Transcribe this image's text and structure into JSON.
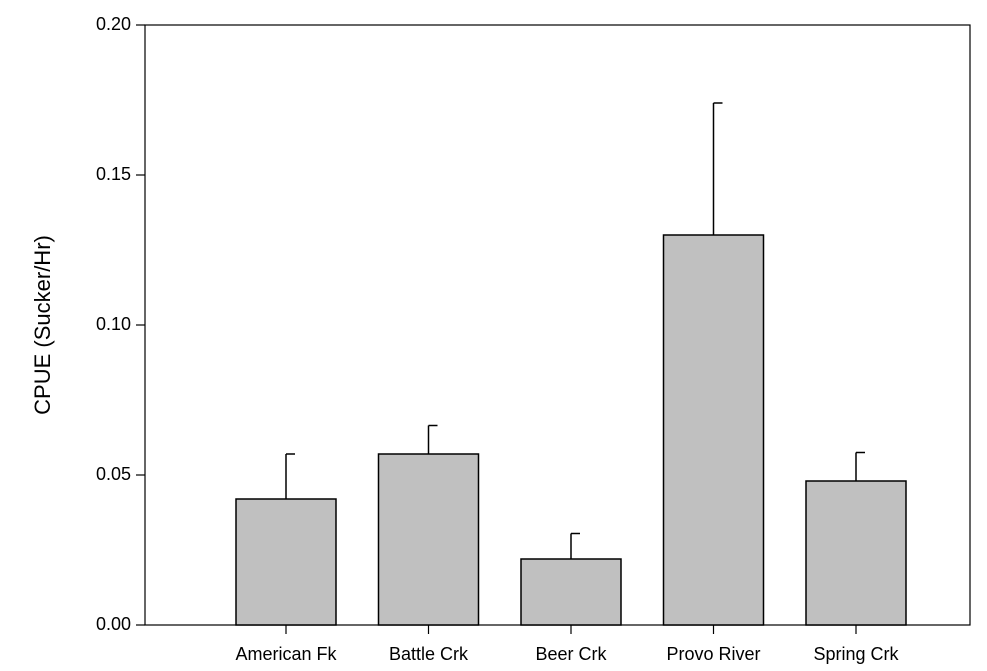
{
  "chart_data": {
    "type": "bar",
    "title": "",
    "xlabel": "",
    "ylabel": "CPUE (Sucker/Hr)",
    "categories": [
      "American Fk",
      "Battle Crk",
      "Beer Crk",
      "Provo River",
      "Spring Crk"
    ],
    "values": [
      0.042,
      0.057,
      0.022,
      0.13,
      0.048
    ],
    "error_upper": [
      0.057,
      0.0665,
      0.0305,
      0.174,
      0.0575
    ],
    "ylim": [
      0,
      0.2
    ],
    "yticks": [
      "0.00",
      "0.05",
      "0.10",
      "0.15",
      "0.20"
    ],
    "grid": false,
    "legend": "none",
    "bar_color": "#c0c0c0",
    "edge_color": "#000000"
  }
}
